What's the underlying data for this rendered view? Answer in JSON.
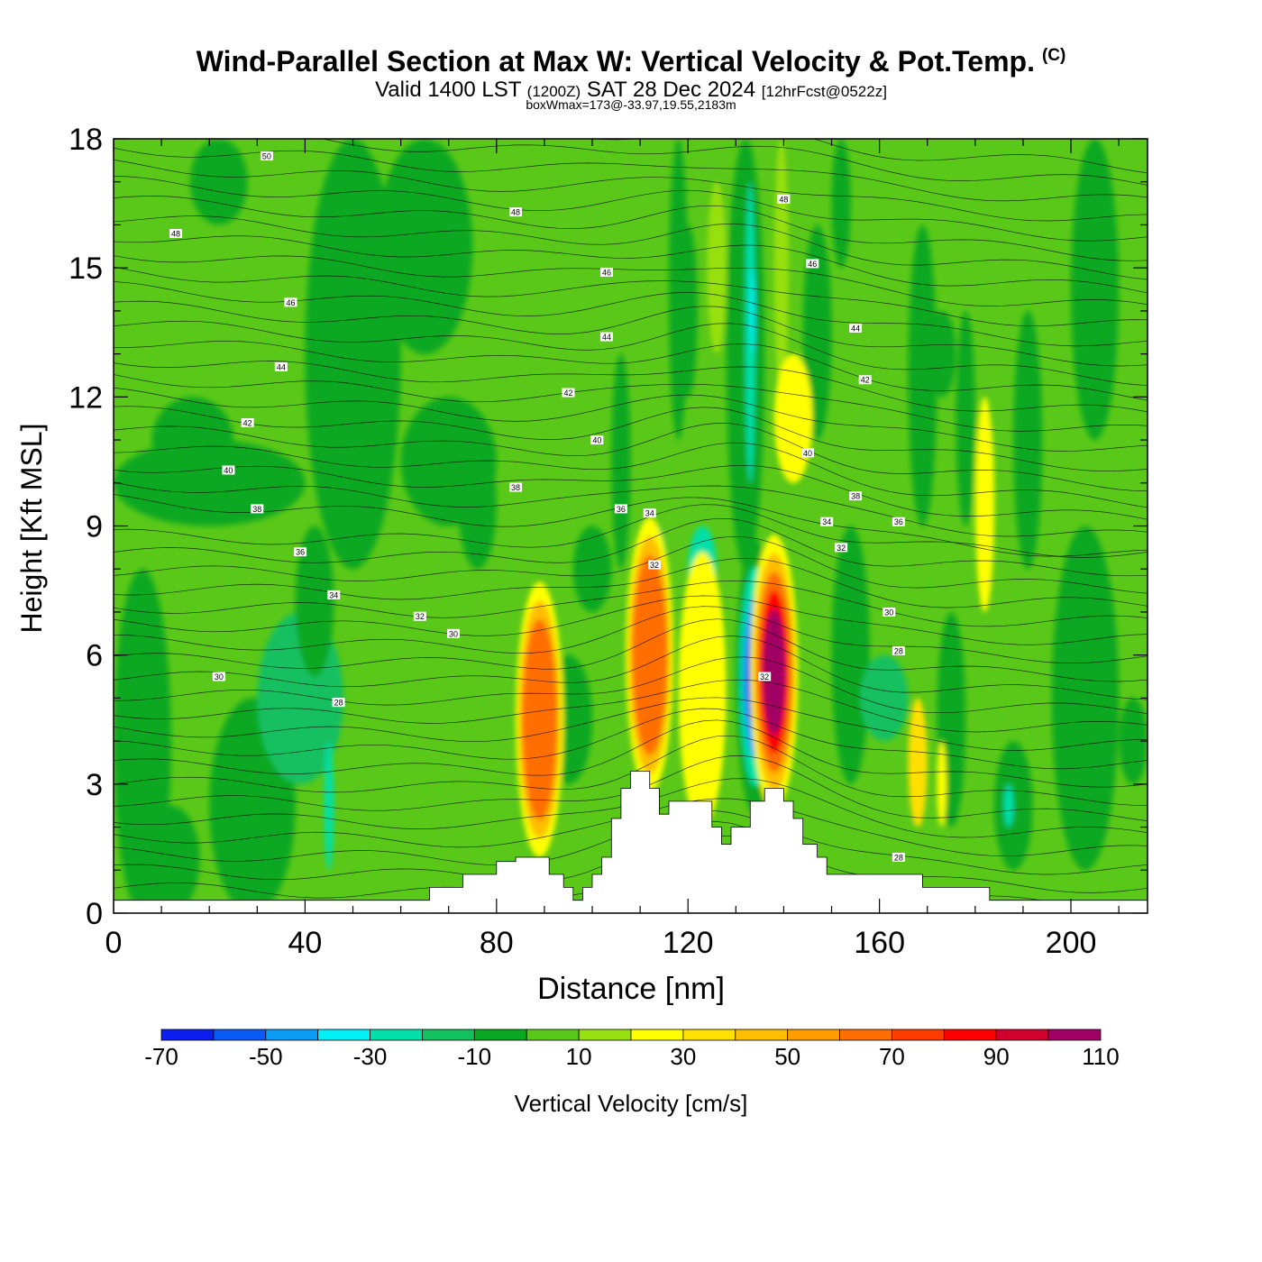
{
  "header": {
    "title": "Wind-Parallel Section at Max W: Vertical Velocity & Pot.Temp.",
    "copyright": "(C)",
    "valid_prefix": "Valid 1400 LST",
    "valid_utc": "(1200Z)",
    "valid_date": "SAT 28 Dec 2024",
    "forecast": "[12hrFcst@0522z]",
    "box_info": "boxWmax=173@-33.97,19.55,2183m"
  },
  "chart_data": {
    "type": "heatmap",
    "xlabel": "Distance [nm]",
    "ylabel": "Height [Kft MSL]",
    "xlim": [
      0,
      216
    ],
    "ylim": [
      0,
      18
    ],
    "xticks": [
      0,
      40,
      80,
      120,
      160,
      200
    ],
    "yticks": [
      0,
      3,
      6,
      9,
      12,
      15,
      18
    ],
    "colorbar": {
      "label": "Vertical Velocity [cm/s]",
      "ticks": [
        -70,
        -50,
        -30,
        -10,
        10,
        30,
        50,
        70,
        90,
        110
      ],
      "levels": [
        -70,
        -60,
        -50,
        -40,
        -30,
        -20,
        -10,
        0,
        10,
        20,
        30,
        40,
        50,
        60,
        70,
        80,
        90,
        100,
        110
      ],
      "colors": [
        "#0a1ef0",
        "#0a5af5",
        "#0a9cf5",
        "#00f0f5",
        "#00e0a8",
        "#12c060",
        "#08a820",
        "#5ac818",
        "#98e010",
        "#ffff00",
        "#ffe000",
        "#ffbe00",
        "#ff9c00",
        "#ff6e00",
        "#ff3c00",
        "#ff0000",
        "#d2002d",
        "#a00064"
      ]
    },
    "terrain": [
      [
        0,
        0.3
      ],
      [
        66,
        0.3
      ],
      [
        66,
        0.6
      ],
      [
        73,
        0.6
      ],
      [
        73,
        0.9
      ],
      [
        80,
        0.9
      ],
      [
        80,
        1.2
      ],
      [
        84,
        1.2
      ],
      [
        84,
        1.3
      ],
      [
        91,
        1.3
      ],
      [
        91,
        0.9
      ],
      [
        94,
        0.9
      ],
      [
        94,
        0.6
      ],
      [
        96,
        0.6
      ],
      [
        96,
        0.3
      ],
      [
        98,
        0.3
      ],
      [
        98,
        0.6
      ],
      [
        100,
        0.6
      ],
      [
        100,
        0.9
      ],
      [
        102,
        0.9
      ],
      [
        102,
        1.3
      ],
      [
        104,
        1.3
      ],
      [
        104,
        2.2
      ],
      [
        106,
        2.2
      ],
      [
        106,
        2.9
      ],
      [
        108,
        2.9
      ],
      [
        108,
        3.3
      ],
      [
        112,
        3.3
      ],
      [
        112,
        2.9
      ],
      [
        114,
        2.9
      ],
      [
        114,
        2.3
      ],
      [
        116,
        2.3
      ],
      [
        116,
        2.6
      ],
      [
        125,
        2.6
      ],
      [
        125,
        2.0
      ],
      [
        127,
        2.0
      ],
      [
        127,
        1.6
      ],
      [
        129,
        1.6
      ],
      [
        129,
        2.0
      ],
      [
        133,
        2.0
      ],
      [
        133,
        2.6
      ],
      [
        136,
        2.6
      ],
      [
        136,
        2.9
      ],
      [
        140,
        2.9
      ],
      [
        140,
        2.6
      ],
      [
        142,
        2.6
      ],
      [
        142,
        2.2
      ],
      [
        144,
        2.2
      ],
      [
        144,
        1.6
      ],
      [
        147,
        1.6
      ],
      [
        147,
        1.3
      ],
      [
        149,
        1.3
      ],
      [
        149,
        0.9
      ],
      [
        169,
        0.9
      ],
      [
        169,
        0.6
      ],
      [
        183,
        0.6
      ],
      [
        183,
        0.3
      ],
      [
        216,
        0.3
      ]
    ],
    "wmax_cells": [
      {
        "x": 89,
        "y": 4.5,
        "w_cms": 70
      },
      {
        "x": 112,
        "y": 6.0,
        "w_cms": 75
      },
      {
        "x": 123,
        "y": 5.2,
        "w_cms": 35
      },
      {
        "x": 134,
        "y": 5.5,
        "w_cms": -70
      },
      {
        "x": 138,
        "y": 5.6,
        "w_cms": 110
      }
    ],
    "contour_labels": [
      {
        "x": 32,
        "y": 17.6,
        "text": "50"
      },
      {
        "x": 13,
        "y": 15.8,
        "text": "48"
      },
      {
        "x": 84,
        "y": 16.3,
        "text": "48"
      },
      {
        "x": 140,
        "y": 16.6,
        "text": "48"
      },
      {
        "x": 103,
        "y": 14.9,
        "text": "46"
      },
      {
        "x": 37,
        "y": 14.2,
        "text": "46"
      },
      {
        "x": 146,
        "y": 15.1,
        "text": "46"
      },
      {
        "x": 103,
        "y": 13.4,
        "text": "44"
      },
      {
        "x": 155,
        "y": 13.6,
        "text": "44"
      },
      {
        "x": 35,
        "y": 12.7,
        "text": "44"
      },
      {
        "x": 95,
        "y": 12.1,
        "text": "42"
      },
      {
        "x": 157,
        "y": 12.4,
        "text": "42"
      },
      {
        "x": 28,
        "y": 11.4,
        "text": "42"
      },
      {
        "x": 101,
        "y": 11.0,
        "text": "40"
      },
      {
        "x": 145,
        "y": 10.7,
        "text": "40"
      },
      {
        "x": 24,
        "y": 10.3,
        "text": "40"
      },
      {
        "x": 84,
        "y": 9.9,
        "text": "38"
      },
      {
        "x": 30,
        "y": 9.4,
        "text": "38"
      },
      {
        "x": 155,
        "y": 9.7,
        "text": "38"
      },
      {
        "x": 106,
        "y": 9.4,
        "text": "36"
      },
      {
        "x": 164,
        "y": 9.1,
        "text": "36"
      },
      {
        "x": 39,
        "y": 8.4,
        "text": "36"
      },
      {
        "x": 112,
        "y": 9.3,
        "text": "34"
      },
      {
        "x": 149,
        "y": 9.1,
        "text": "34"
      },
      {
        "x": 46,
        "y": 7.4,
        "text": "34"
      },
      {
        "x": 64,
        "y": 6.9,
        "text": "32"
      },
      {
        "x": 113,
        "y": 8.1,
        "text": "32"
      },
      {
        "x": 152,
        "y": 8.5,
        "text": "32"
      },
      {
        "x": 136,
        "y": 5.5,
        "text": "32"
      },
      {
        "x": 71,
        "y": 6.5,
        "text": "30"
      },
      {
        "x": 162,
        "y": 7.0,
        "text": "30"
      },
      {
        "x": 22,
        "y": 5.5,
        "text": "30"
      },
      {
        "x": 47,
        "y": 4.9,
        "text": "28"
      },
      {
        "x": 164,
        "y": 6.1,
        "text": "28"
      },
      {
        "x": 164,
        "y": 1.3,
        "text": "28"
      }
    ]
  }
}
